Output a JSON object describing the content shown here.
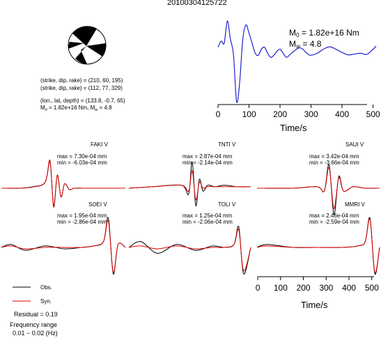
{
  "title": "20100304125722",
  "mechanism": {
    "line1": "(strike, dip, rake) = (210, 60, 195)",
    "line2": "(strike, dip, rake) = (112, 77, 329)",
    "line3": "(lon., lat, depth) = (133.8, -0.7, 65)",
    "m0_prefix": "M",
    "m0_sub": "0",
    "m0_value": "= 1.82e+16 Nm, M",
    "mw_sub": "w",
    "mw_value": "= 4.8"
  },
  "stf": {
    "m0_label_m": "M",
    "m0_label_sub": "0",
    "m0_label_val": "= 1.82e+16 Nm",
    "mw_label_m": "M",
    "mw_label_sub": "w",
    "mw_label_val": "= 4.8",
    "xlabel": "Time/s",
    "xticks": [
      "0",
      "100",
      "200",
      "300",
      "400",
      "500"
    ]
  },
  "waveforms": {
    "xlabel": "Time/s",
    "xticks": [
      "0",
      "100",
      "200",
      "300",
      "400",
      "500"
    ],
    "stations": [
      {
        "name": "FAKI V",
        "max": "max = 7.30e-04 mm",
        "min": "min = -6.03e-04 mm"
      },
      {
        "name": "TNTI V",
        "max": "max = 2.87e-04 mm",
        "min": "min = -2.14e-04 mm"
      },
      {
        "name": "SAUI V",
        "max": "max = 3.42e-04 mm",
        "min": "min = -3.66e-04 mm"
      },
      {
        "name": "SOEI V",
        "max": "max = 1.95e-04 mm",
        "min": "min = -2.86e-04 mm"
      },
      {
        "name": "TOLI V",
        "max": "max = 1.25e-04 mm",
        "min": "min = -2.06e-04 mm"
      },
      {
        "name": "MMRI V",
        "max": "max = 2.46e-04 mm",
        "min": "min = -2.59e-04 mm"
      }
    ]
  },
  "legend": {
    "obs": "Obs.",
    "syn": "Syn.",
    "residual": "Residual = 0.19",
    "freq_label": "Frequency range",
    "freq_value": "0.01 − 0.02 (Hz)"
  },
  "colors": {
    "observed": "#000000",
    "synthetic": "#e00000",
    "stf": "#2020d0"
  },
  "chart_data": [
    {
      "type": "line",
      "name": "source-time-function",
      "xlabel": "Time/s",
      "ylabel": "",
      "xlim": [
        0,
        510
      ],
      "x": [
        0,
        10,
        20,
        30,
        40,
        50,
        60,
        70,
        80,
        90,
        100,
        110,
        120,
        130,
        140,
        150,
        160,
        170,
        180,
        190,
        200,
        210,
        220,
        230,
        240,
        250,
        260,
        270,
        280,
        290,
        300,
        320,
        340,
        360,
        380,
        400,
        420,
        440,
        460,
        480,
        500,
        510
      ],
      "values": [
        0.35,
        0.5,
        0.45,
        1.0,
        0.55,
        0.15,
        -1.0,
        -0.5,
        0.55,
        0.9,
        0.7,
        0.45,
        0.2,
        0.15,
        0.3,
        0.35,
        0.2,
        0.1,
        0.15,
        0.25,
        0.3,
        0.2,
        0.1,
        0.15,
        0.22,
        0.28,
        0.33,
        0.32,
        0.25,
        0.18,
        0.15,
        0.2,
        0.3,
        0.36,
        0.3,
        0.22,
        0.16,
        0.18,
        0.2,
        0.17,
        0.3,
        0.38
      ]
    },
    {
      "type": "line",
      "name": "station-waveforms",
      "xlabel": "Time/s",
      "ylabel": "",
      "xlim": [
        0,
        510
      ],
      "series": [
        {
          "name": "Obs.",
          "stations": {
            "FAKI V": {
              "x": [
                0,
                80,
                130,
                180,
                200,
                215,
                230,
                245,
                260,
                280,
                300,
                340,
                400,
                510
              ],
              "y": [
                0,
                0,
                0.05,
                0.2,
                0.9,
                -0.6,
                0.45,
                -0.3,
                0.15,
                -0.05,
                0,
                0,
                0,
                0
              ]
            },
            "TNTI V": {
              "x": [
                0,
                100,
                220,
                250,
                265,
                280,
                295,
                310,
                330,
                360,
                400,
                450,
                510
              ],
              "y": [
                0,
                0.05,
                0.1,
                -0.2,
                0.9,
                -0.6,
                0.3,
                -0.1,
                0.1,
                0.05,
                0.1,
                0.05,
                0.05
              ]
            },
            "SAUI V": {
              "x": [
                0,
                150,
                250,
                280,
                300,
                320,
                340,
                360,
                400,
                450,
                510
              ],
              "y": [
                0,
                0,
                0.05,
                -0.1,
                0.8,
                -0.9,
                0.4,
                -0.1,
                0.05,
                0,
                0
              ]
            },
            "SOEI V": {
              "x": [
                0,
                40,
                100,
                180,
                260,
                330,
                380,
                420,
                440,
                460,
                480,
                510
              ],
              "y": [
                0,
                0.1,
                -0.1,
                0.05,
                -0.05,
                0,
                0.05,
                0.2,
                1.0,
                -0.9,
                0.1,
                0
              ]
            },
            "TOLI V": {
              "x": [
                0,
                50,
                120,
                200,
                280,
                350,
                400,
                440,
                460,
                480,
                510
              ],
              "y": [
                0,
                0.2,
                -0.2,
                0.1,
                -0.1,
                0.05,
                0,
                0.1,
                0.7,
                -0.9,
                0
              ]
            },
            "MMRI V": {
              "x": [
                0,
                40,
                150,
                250,
                350,
                420,
                450,
                470,
                490,
                510
              ],
              "y": [
                0,
                0.1,
                0,
                0,
                0,
                0.05,
                0.2,
                1.0,
                -0.9,
                0
              ]
            }
          }
        },
        {
          "name": "Syn.",
          "stations": {
            "FAKI V": {
              "x": [
                0,
                80,
                130,
                180,
                200,
                215,
                230,
                245,
                260,
                280,
                300,
                340,
                400,
                510
              ],
              "y": [
                0,
                0,
                0.04,
                0.2,
                0.95,
                -0.65,
                0.45,
                -0.3,
                0.15,
                -0.05,
                0,
                0,
                0,
                0
              ]
            },
            "TNTI V": {
              "x": [
                0,
                100,
                220,
                250,
                265,
                280,
                295,
                310,
                330,
                360,
                400,
                450,
                510
              ],
              "y": [
                0,
                0.05,
                0.1,
                -0.1,
                0.6,
                -0.4,
                0.2,
                0,
                0.05,
                0.05,
                0.05,
                0.05,
                0.05
              ]
            },
            "SAUI V": {
              "x": [
                0,
                150,
                250,
                280,
                300,
                320,
                340,
                360,
                400,
                450,
                510
              ],
              "y": [
                0,
                0,
                0.05,
                -0.1,
                0.7,
                -0.7,
                0.35,
                -0.1,
                0.05,
                0,
                0
              ]
            },
            "SOEI V": {
              "x": [
                0,
                40,
                100,
                180,
                260,
                330,
                380,
                420,
                440,
                460,
                480,
                510
              ],
              "y": [
                0,
                0.05,
                -0.05,
                0,
                0,
                0,
                0.05,
                0.2,
                0.9,
                -0.85,
                0.1,
                0
              ]
            },
            "TOLI V": {
              "x": [
                0,
                50,
                120,
                200,
                280,
                350,
                400,
                440,
                460,
                480,
                510
              ],
              "y": [
                0,
                0.05,
                -0.05,
                0.05,
                -0.05,
                0,
                0,
                0.1,
                0.6,
                -0.8,
                0
              ]
            },
            "MMRI V": {
              "x": [
                0,
                40,
                150,
                250,
                350,
                420,
                450,
                470,
                490,
                510
              ],
              "y": [
                0,
                0.05,
                0,
                0,
                0,
                0.05,
                0.2,
                0.95,
                -0.85,
                0
              ]
            }
          }
        }
      ]
    }
  ]
}
